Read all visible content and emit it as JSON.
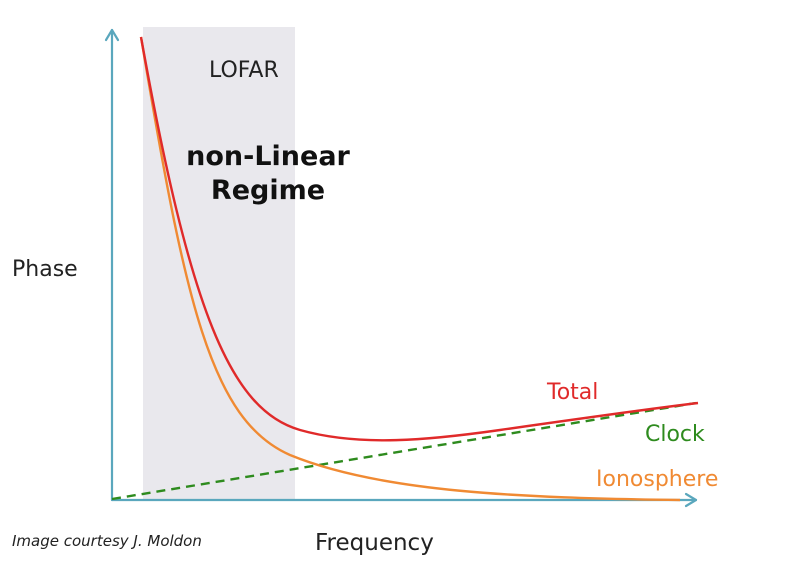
{
  "diagram": {
    "region_label": "LOFAR",
    "regime_label_line1": "non-Linear",
    "regime_label_line2": "Regime",
    "y_axis_label": "Phase",
    "x_axis_label": "Frequency",
    "credit": "Image courtesy J. Moldon",
    "curves": [
      {
        "key": "total",
        "label": "Total",
        "color": "#e02a2a",
        "style": "solid"
      },
      {
        "key": "clock",
        "label": "Clock",
        "color": "#2e8b1e",
        "style": "dashed"
      },
      {
        "key": "ionosphere",
        "label": "Ionosphere",
        "color": "#f08a33",
        "style": "solid"
      }
    ],
    "axis_color": "#5aa7bd",
    "region_color": "#e9e8ed"
  }
}
